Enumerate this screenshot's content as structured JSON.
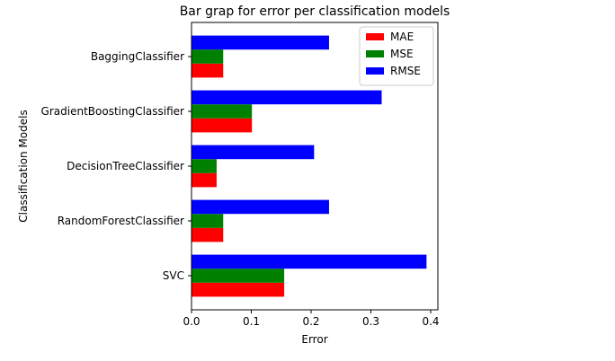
{
  "chart_data": {
    "type": "bar",
    "orientation": "horizontal",
    "title": "Bar grap for error per classification models",
    "xlabel": "Error",
    "ylabel": "Classification Models",
    "categories": [
      "SVC",
      "RandomForestClassifier",
      "DecisionTreeClassifier",
      "GradientBoostingClassifier",
      "BaggingClassifier"
    ],
    "series": [
      {
        "name": "MAE",
        "color": "#ff0000",
        "values": [
          0.155,
          0.053,
          0.042,
          0.101,
          0.053
        ]
      },
      {
        "name": "MSE",
        "color": "#008000",
        "values": [
          0.155,
          0.053,
          0.042,
          0.101,
          0.053
        ]
      },
      {
        "name": "RMSE",
        "color": "#0000ff",
        "values": [
          0.393,
          0.23,
          0.205,
          0.318,
          0.23
        ]
      }
    ],
    "xlim": [
      0,
      0.412
    ],
    "xticks": [
      0.0,
      0.1,
      0.2,
      0.3,
      0.4
    ],
    "xtick_labels": [
      "0.0",
      "0.1",
      "0.2",
      "0.3",
      "0.4"
    ],
    "grid": false,
    "legend_position": "top-right"
  }
}
